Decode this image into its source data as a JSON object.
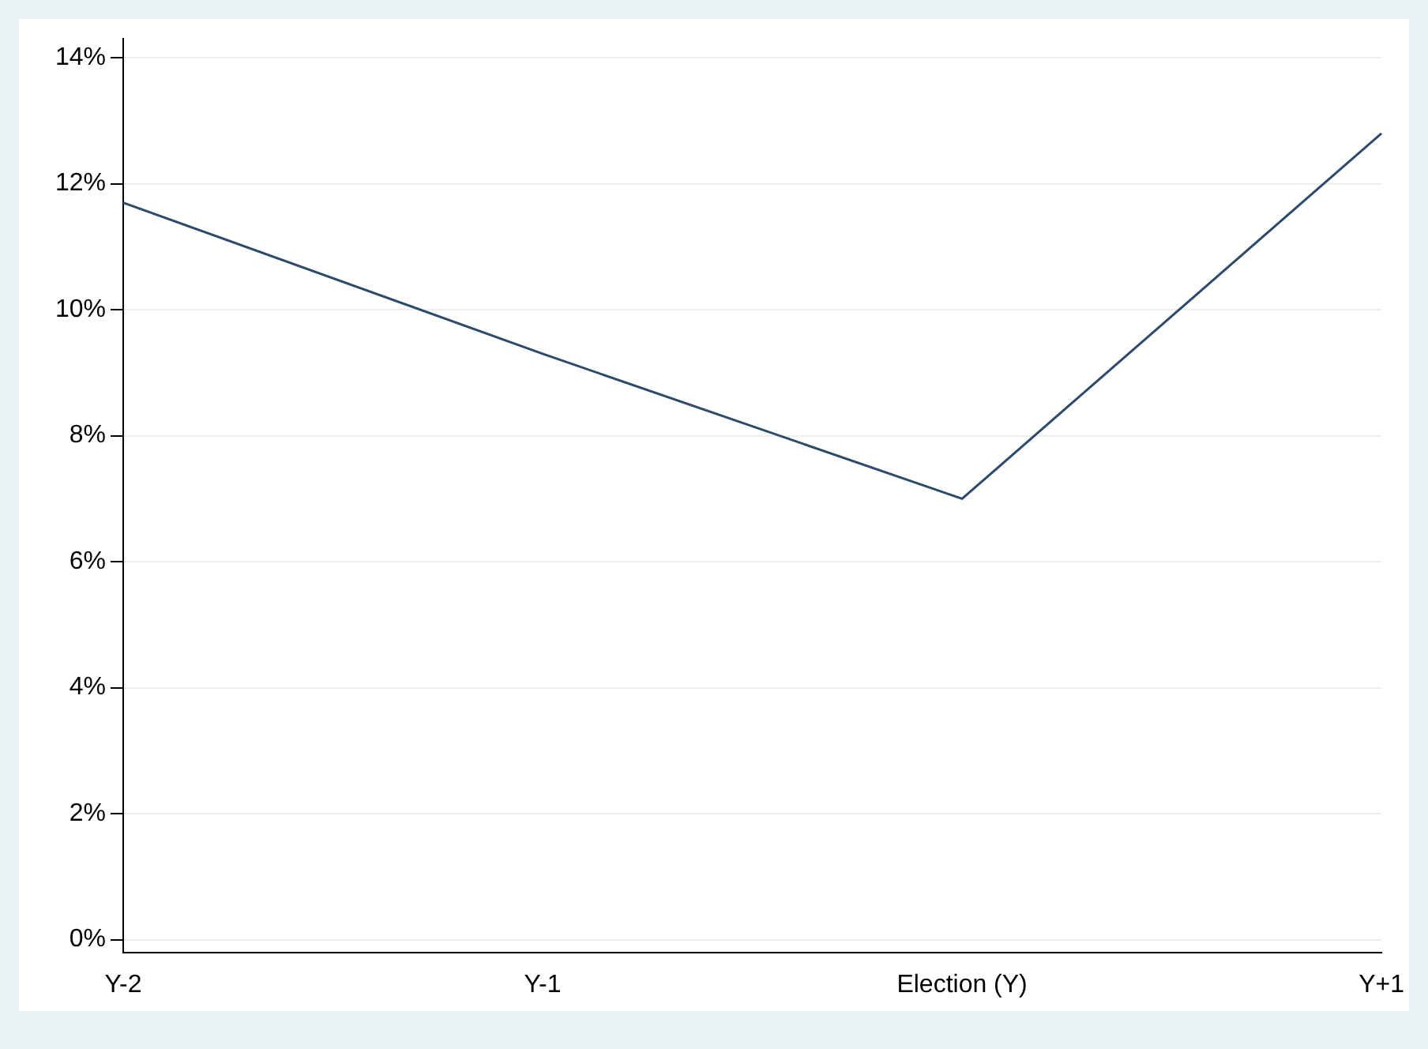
{
  "chart_data": {
    "type": "line",
    "categories": [
      "Y-2",
      "Y-1",
      "Election (Y)",
      "Y+1"
    ],
    "series": [
      {
        "color": "#2e4a6b",
        "values": [
          11.7,
          9.3,
          7.0,
          12.8
        ]
      }
    ],
    "ylim": [
      -0.2,
      14.3
    ],
    "yticks": [
      {
        "value": 0,
        "label": "0%"
      },
      {
        "value": 2,
        "label": "2%"
      },
      {
        "value": 4,
        "label": "4%"
      },
      {
        "value": 6,
        "label": "6%"
      },
      {
        "value": 8,
        "label": "8%"
      },
      {
        "value": 10,
        "label": "10%"
      },
      {
        "value": 12,
        "label": "12%"
      },
      {
        "value": 14,
        "label": "14%"
      }
    ],
    "grid": "y",
    "legend": false,
    "marker": "none",
    "line_style": "solid"
  }
}
